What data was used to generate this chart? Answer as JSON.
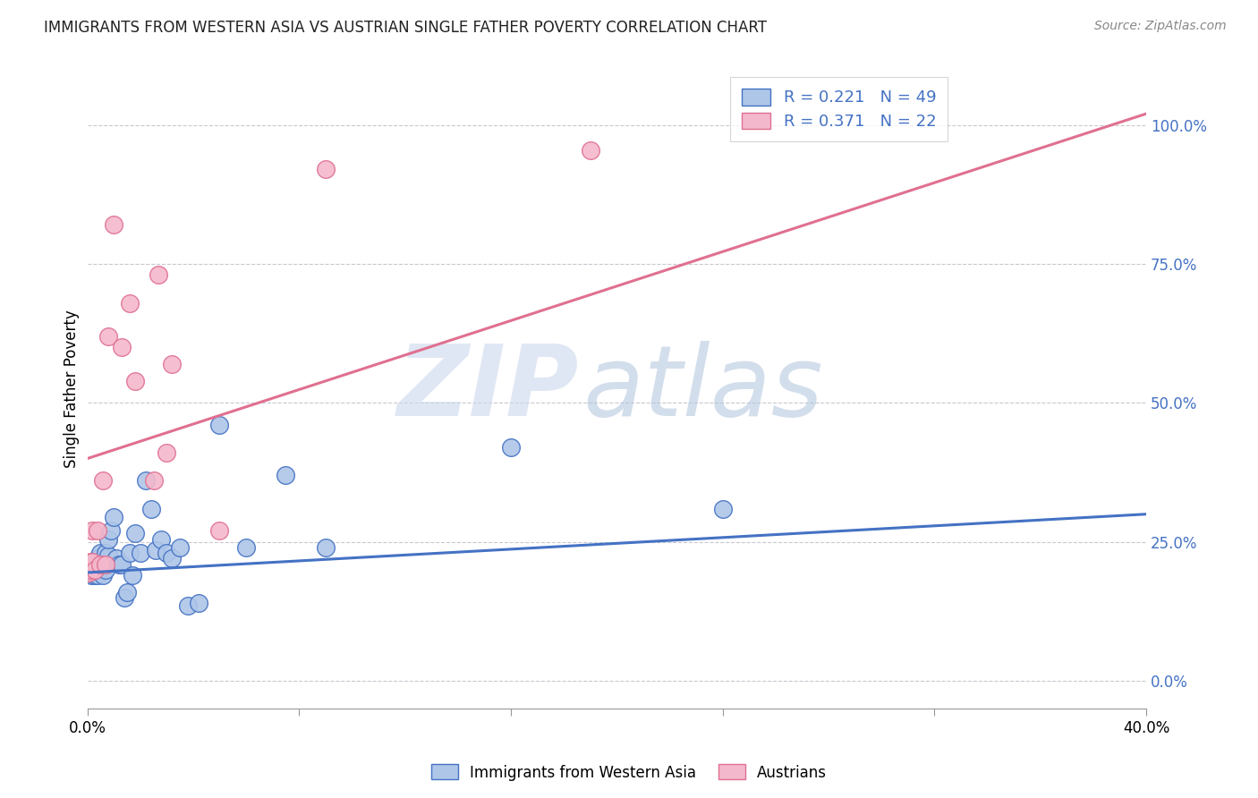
{
  "title": "IMMIGRANTS FROM WESTERN ASIA VS AUSTRIAN SINGLE FATHER POVERTY CORRELATION CHART",
  "source": "Source: ZipAtlas.com",
  "ylabel": "Single Father Poverty",
  "right_ytick_vals": [
    0.0,
    0.25,
    0.5,
    0.75,
    1.0
  ],
  "right_ytick_labels": [
    "0.0%",
    "25.0%",
    "50.0%",
    "75.0%",
    "100.0%"
  ],
  "blue_color": "#aec6e8",
  "pink_color": "#f4b8cc",
  "blue_edge_color": "#4472c4",
  "pink_edge_color": "#e07090",
  "blue_line_color": "#4472c4",
  "pink_line_color": "#e07090",
  "legend_text_color": "#4472c4",
  "xlim": [
    0.0,
    0.4
  ],
  "ylim": [
    -0.05,
    1.1
  ],
  "blue_line_x0": 0.0,
  "blue_line_y0": 0.195,
  "blue_line_x1": 0.4,
  "blue_line_y1": 0.3,
  "pink_line_x0": 0.0,
  "pink_line_y0": 0.4,
  "pink_line_x1": 0.4,
  "pink_line_y1": 1.02,
  "blue_scatter_x": [
    0.0005,
    0.001,
    0.001,
    0.0015,
    0.0015,
    0.002,
    0.002,
    0.002,
    0.003,
    0.003,
    0.003,
    0.004,
    0.004,
    0.004,
    0.005,
    0.005,
    0.005,
    0.006,
    0.006,
    0.007,
    0.007,
    0.008,
    0.008,
    0.009,
    0.01,
    0.011,
    0.012,
    0.013,
    0.014,
    0.015,
    0.016,
    0.017,
    0.018,
    0.02,
    0.022,
    0.024,
    0.026,
    0.028,
    0.03,
    0.032,
    0.035,
    0.038,
    0.042,
    0.05,
    0.06,
    0.075,
    0.09,
    0.16,
    0.24
  ],
  "blue_scatter_y": [
    0.195,
    0.195,
    0.2,
    0.19,
    0.2,
    0.195,
    0.2,
    0.21,
    0.19,
    0.2,
    0.215,
    0.19,
    0.205,
    0.22,
    0.2,
    0.215,
    0.23,
    0.19,
    0.215,
    0.2,
    0.23,
    0.225,
    0.255,
    0.27,
    0.295,
    0.22,
    0.21,
    0.21,
    0.15,
    0.16,
    0.23,
    0.19,
    0.265,
    0.23,
    0.36,
    0.31,
    0.235,
    0.255,
    0.23,
    0.22,
    0.24,
    0.135,
    0.14,
    0.46,
    0.24,
    0.37,
    0.24,
    0.42,
    0.31
  ],
  "pink_scatter_x": [
    0.0005,
    0.001,
    0.001,
    0.002,
    0.002,
    0.003,
    0.004,
    0.005,
    0.006,
    0.007,
    0.008,
    0.01,
    0.013,
    0.016,
    0.018,
    0.025,
    0.027,
    0.03,
    0.032,
    0.05,
    0.09,
    0.19
  ],
  "pink_scatter_y": [
    0.195,
    0.2,
    0.215,
    0.215,
    0.27,
    0.2,
    0.27,
    0.21,
    0.36,
    0.21,
    0.62,
    0.82,
    0.6,
    0.68,
    0.54,
    0.36,
    0.73,
    0.41,
    0.57,
    0.27,
    0.92,
    0.955
  ],
  "xtick_positions": [
    0.0,
    0.08,
    0.16,
    0.24,
    0.32,
    0.4
  ],
  "xtick_labels": [
    "0.0%",
    "",
    "",
    "",
    "",
    "40.0%"
  ]
}
